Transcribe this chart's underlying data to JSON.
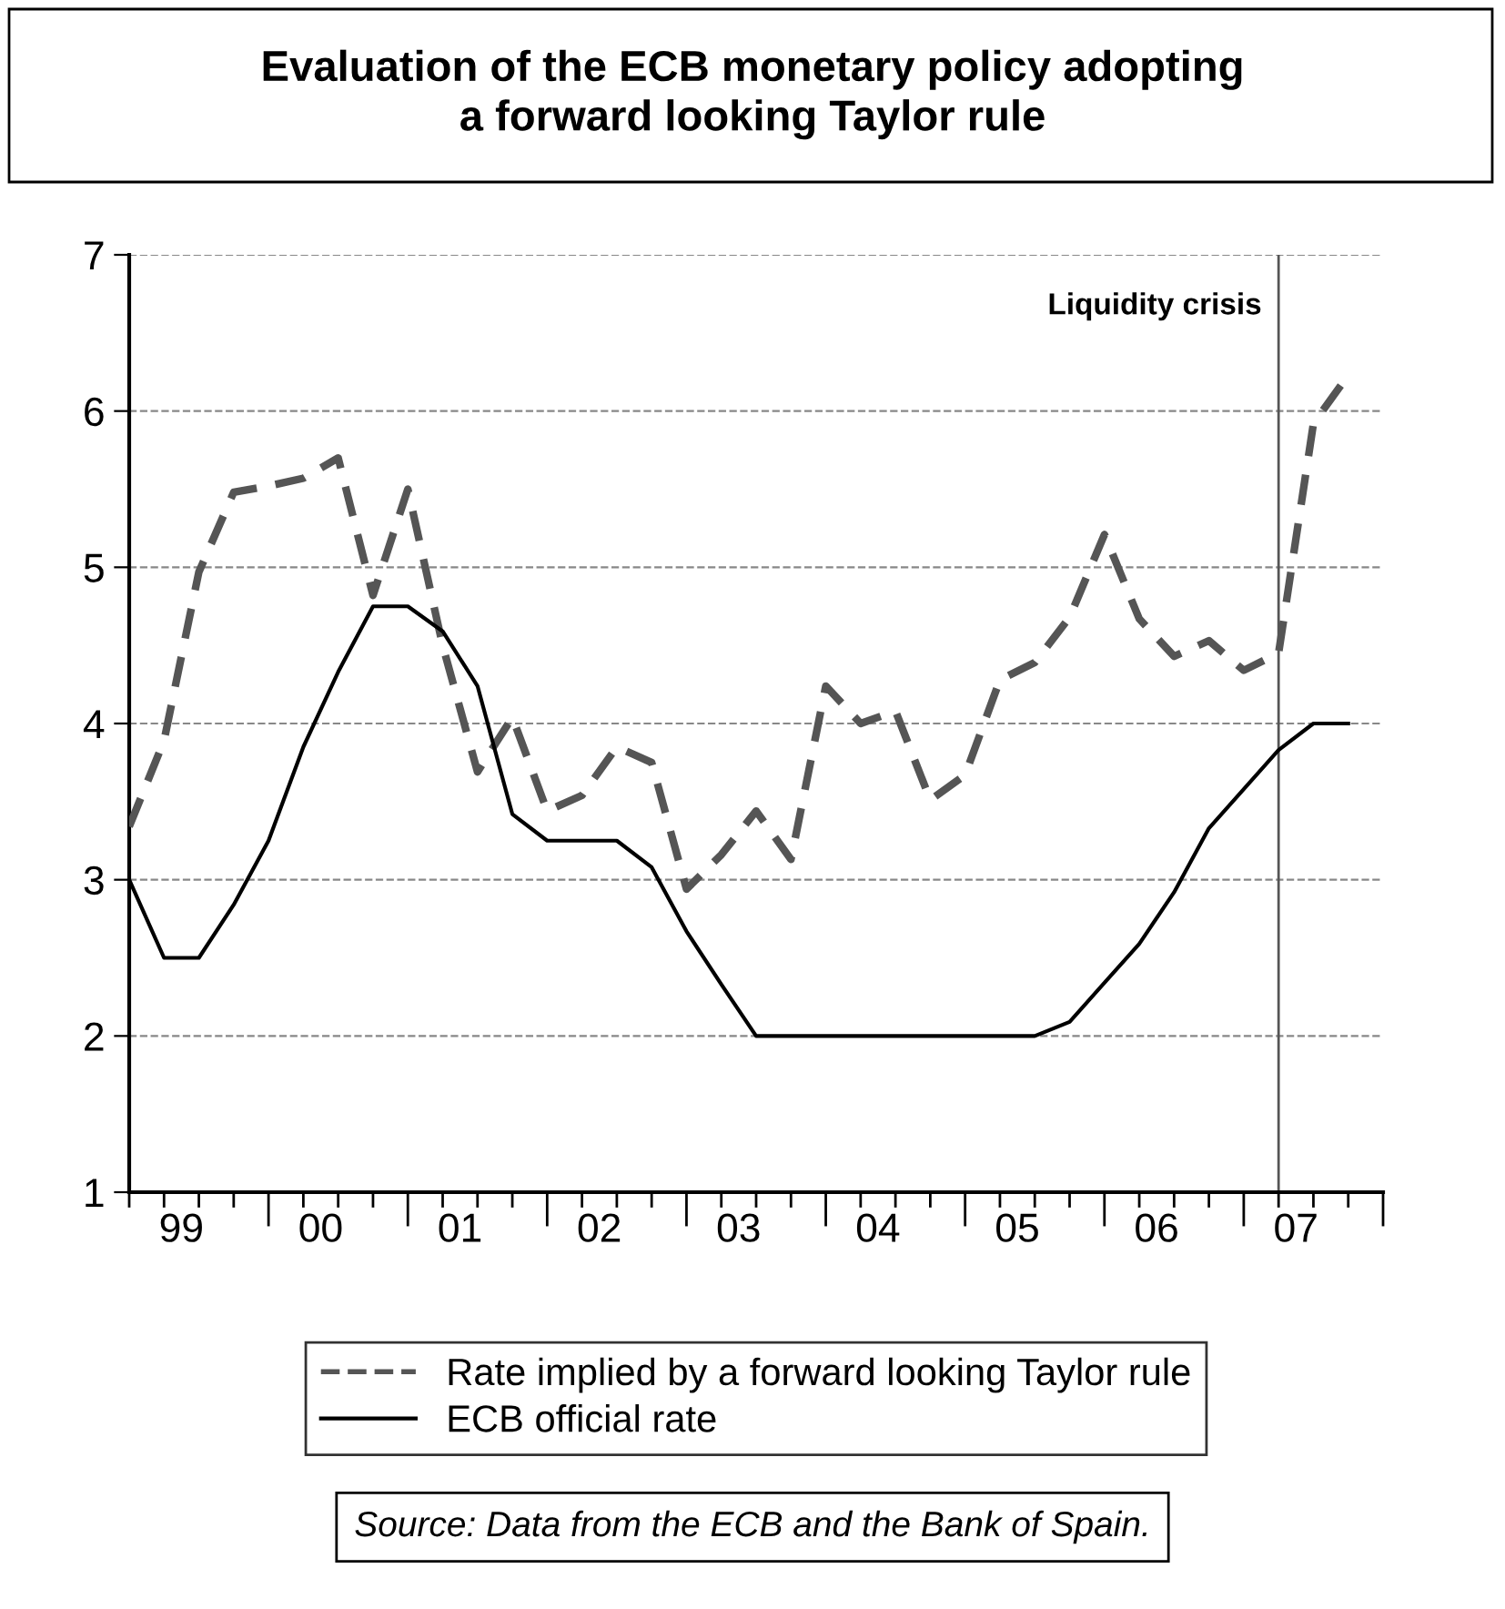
{
  "chart_data": {
    "type": "line",
    "title": "Evaluation of the ECB monetary policy adopting\na forward looking Taylor rule",
    "x": [
      "1999-01",
      "1999-04",
      "1999-07",
      "1999-10",
      "2000-01",
      "2000-04",
      "2000-07",
      "2000-10",
      "2001-01",
      "2001-04",
      "2001-07",
      "2001-10",
      "2002-01",
      "2002-04",
      "2002-07",
      "2002-10",
      "2003-01",
      "2003-04",
      "2003-07",
      "2003-10",
      "2004-01",
      "2004-04",
      "2004-07",
      "2004-10",
      "2005-01",
      "2005-04",
      "2005-07",
      "2005-10",
      "2006-01",
      "2006-04",
      "2006-07",
      "2006-10",
      "2007-01",
      "2007-04",
      "2007-07",
      "2007-10"
    ],
    "series": [
      {
        "name": "Rate implied by a forward looking Taylor rule",
        "color": "#555555",
        "line_style": "dashed",
        "values": [
          3.34,
          3.89,
          4.97,
          5.48,
          5.52,
          5.57,
          5.7,
          4.82,
          5.5,
          4.5,
          3.69,
          4.04,
          3.44,
          3.54,
          3.85,
          3.75,
          2.94,
          3.16,
          3.44,
          3.13,
          4.24,
          4.0,
          4.08,
          3.51,
          3.67,
          4.28,
          4.39,
          4.68,
          5.21,
          4.67,
          4.43,
          4.53,
          4.34,
          4.45,
          5.92,
          6.23
        ]
      },
      {
        "name": "ECB official rate",
        "color": "#000000",
        "line_style": "solid",
        "values": [
          3.0,
          2.5,
          2.5,
          2.84,
          3.25,
          3.85,
          4.33,
          4.75,
          4.75,
          4.59,
          4.24,
          3.42,
          3.25,
          3.25,
          3.25,
          3.08,
          2.67,
          2.33,
          2.0,
          2.0,
          2.0,
          2.0,
          2.0,
          2.0,
          2.0,
          2.0,
          2.0,
          2.09,
          2.34,
          2.59,
          2.92,
          3.33,
          3.58,
          3.83,
          4.0,
          4.0
        ]
      }
    ],
    "xlim": [
      "1999-01",
      "2008-01"
    ],
    "xticks": [
      {
        "value": "1999-05-16",
        "label": "99"
      },
      {
        "value": "2000-05-16",
        "label": "00"
      },
      {
        "value": "2001-05-16",
        "label": "01"
      },
      {
        "value": "2002-05-16",
        "label": "02"
      },
      {
        "value": "2003-05-16",
        "label": "03"
      },
      {
        "value": "2004-05-16",
        "label": "04"
      },
      {
        "value": "2005-05-16",
        "label": "05"
      },
      {
        "value": "2006-05-16",
        "label": "06"
      },
      {
        "value": "2007-05-16",
        "label": "07"
      }
    ],
    "ylim": [
      1,
      7
    ],
    "yticks": [
      1,
      2,
      3,
      4,
      5,
      6,
      7
    ],
    "grid": "y",
    "legend": "bottom",
    "marker": "none",
    "ref_lines": [
      {
        "axis": "x",
        "value": "2007-04",
        "label": "Liquidity crisis",
        "color": "#555555"
      }
    ],
    "annotations": [
      "Source: Data from the ECB and the Bank of Spain."
    ]
  }
}
